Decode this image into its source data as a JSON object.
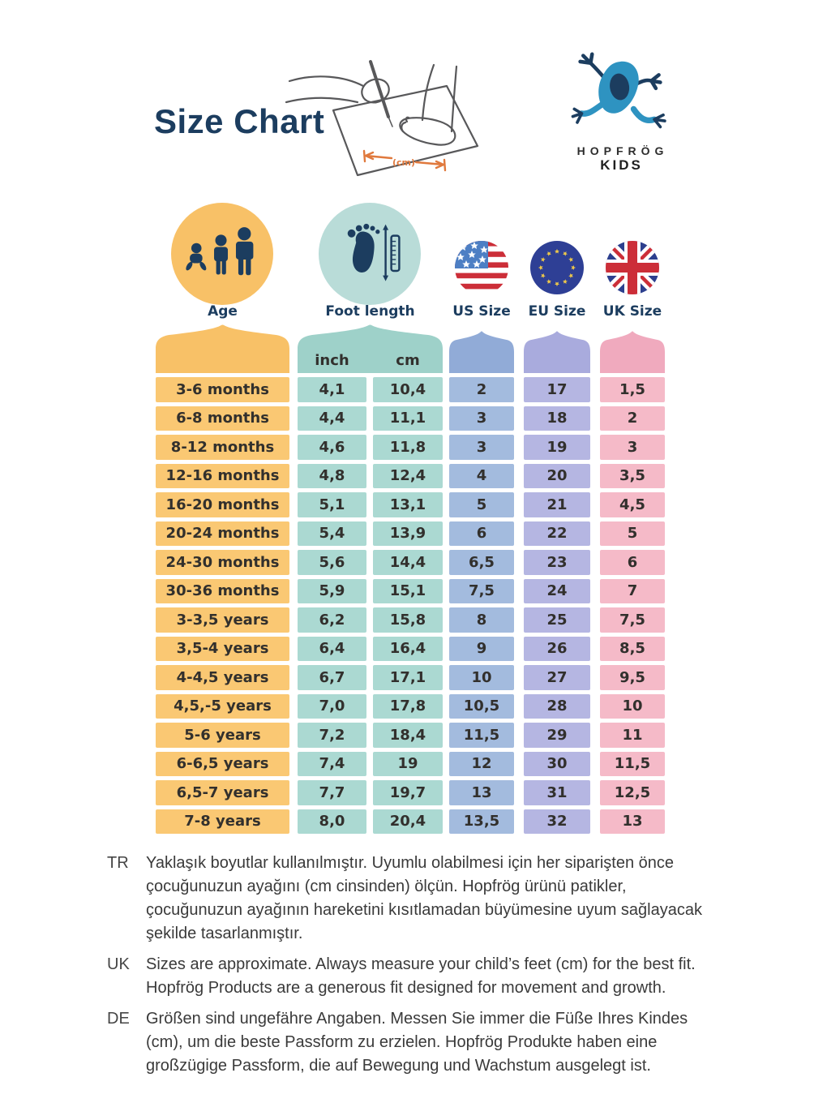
{
  "title": "Size Chart",
  "brand": {
    "name": "HOPFRÖG",
    "subname": "KIDS"
  },
  "illustration": {
    "cm_label": "(cm)"
  },
  "columns": [
    {
      "id": "age",
      "label": "Age"
    },
    {
      "id": "foot",
      "label": "Foot length"
    },
    {
      "id": "us",
      "label": "US Size"
    },
    {
      "id": "eu",
      "label": "EU Size"
    },
    {
      "id": "uk",
      "label": "UK Size"
    }
  ],
  "table": {
    "subheaders": {
      "inch": "inch",
      "cm": "cm"
    },
    "rows": [
      {
        "age": "3-6 months",
        "inch": "4,1",
        "cm": "10,4",
        "us": "2",
        "eu": "17",
        "uk": "1,5"
      },
      {
        "age": "6-8 months",
        "inch": "4,4",
        "cm": "11,1",
        "us": "3",
        "eu": "18",
        "uk": "2"
      },
      {
        "age": "8-12 months",
        "inch": "4,6",
        "cm": "11,8",
        "us": "3",
        "eu": "19",
        "uk": "3"
      },
      {
        "age": "12-16 months",
        "inch": "4,8",
        "cm": "12,4",
        "us": "4",
        "eu": "20",
        "uk": "3,5"
      },
      {
        "age": "16-20 months",
        "inch": "5,1",
        "cm": "13,1",
        "us": "5",
        "eu": "21",
        "uk": "4,5"
      },
      {
        "age": "20-24 months",
        "inch": "5,4",
        "cm": "13,9",
        "us": "6",
        "eu": "22",
        "uk": "5"
      },
      {
        "age": "24-30 months",
        "inch": "5,6",
        "cm": "14,4",
        "us": "6,5",
        "eu": "23",
        "uk": "6"
      },
      {
        "age": "30-36 months",
        "inch": "5,9",
        "cm": "15,1",
        "us": "7,5",
        "eu": "24",
        "uk": "7"
      },
      {
        "age": "3-3,5 years",
        "inch": "6,2",
        "cm": "15,8",
        "us": "8",
        "eu": "25",
        "uk": "7,5"
      },
      {
        "age": "3,5-4 years",
        "inch": "6,4",
        "cm": "16,4",
        "us": "9",
        "eu": "26",
        "uk": "8,5"
      },
      {
        "age": "4-4,5 years",
        "inch": "6,7",
        "cm": "17,1",
        "us": "10",
        "eu": "27",
        "uk": "9,5"
      },
      {
        "age": "4,5,-5 years",
        "inch": "7,0",
        "cm": "17,8",
        "us": "10,5",
        "eu": "28",
        "uk": "10"
      },
      {
        "age": "5-6 years",
        "inch": "7,2",
        "cm": "18,4",
        "us": "11,5",
        "eu": "29",
        "uk": "11"
      },
      {
        "age": "6-6,5 years",
        "inch": "7,4",
        "cm": "19",
        "us": "12",
        "eu": "30",
        "uk": "11,5"
      },
      {
        "age": "6,5-7 years",
        "inch": "7,7",
        "cm": "19,7",
        "us": "13",
        "eu": "31",
        "uk": "12,5"
      },
      {
        "age": "7-8 years",
        "inch": "8,0",
        "cm": "20,4",
        "us": "13,5",
        "eu": "32",
        "uk": "13"
      }
    ]
  },
  "notes": [
    {
      "lang": "TR",
      "text": "Yaklaşık boyutlar kullanılmıştır. Uyumlu olabilmesi için her siparişten önce çocuğunuzun ayağını (cm cinsinden) ölçün. Hopfrög ürünü patikler, çocuğunuzun ayağının hareketini kısıtlamadan büyümesine uyum sağlayacak şekilde tasarlanmıştır."
    },
    {
      "lang": "UK",
      "text": "Sizes are approximate. Always measure your child’s feet (cm) for the best fit. Hopfrög Products are a generous fit designed for movement and growth."
    },
    {
      "lang": "DE",
      "text": "Größen sind ungefähre Angaben. Messen Sie immer die Füße Ihres Kindes (cm), um die beste Passform zu erzielen. Hopfrög Produkte haben eine großzügige Passform, die auf Bewegung und Wachstum ausgelegt ist."
    }
  ],
  "colors": {
    "navy": "#1c3d5f",
    "ink": "#32302d",
    "orange": "#fac873",
    "orange_h": "#f8c167",
    "foot_circle": "#b9dcd8",
    "teal": "#abd9d2",
    "teal_h": "#9ed1c9",
    "us": "#a3bbde",
    "us_h": "#91abd7",
    "eu": "#b5b6e2",
    "eu_h": "#a9abdd",
    "uk": "#f5bac8",
    "uk_h": "#f0aabe",
    "accent": "#e0793d",
    "frog": "#2e93c1",
    "flag_red": "#cc2e38",
    "flag_blue": "#4d7fc4",
    "uk_blue": "#2c3f8e",
    "eu_blue": "#2e3f95",
    "star_gold": "#eec84a",
    "note_ink": "#3a3a3a"
  }
}
